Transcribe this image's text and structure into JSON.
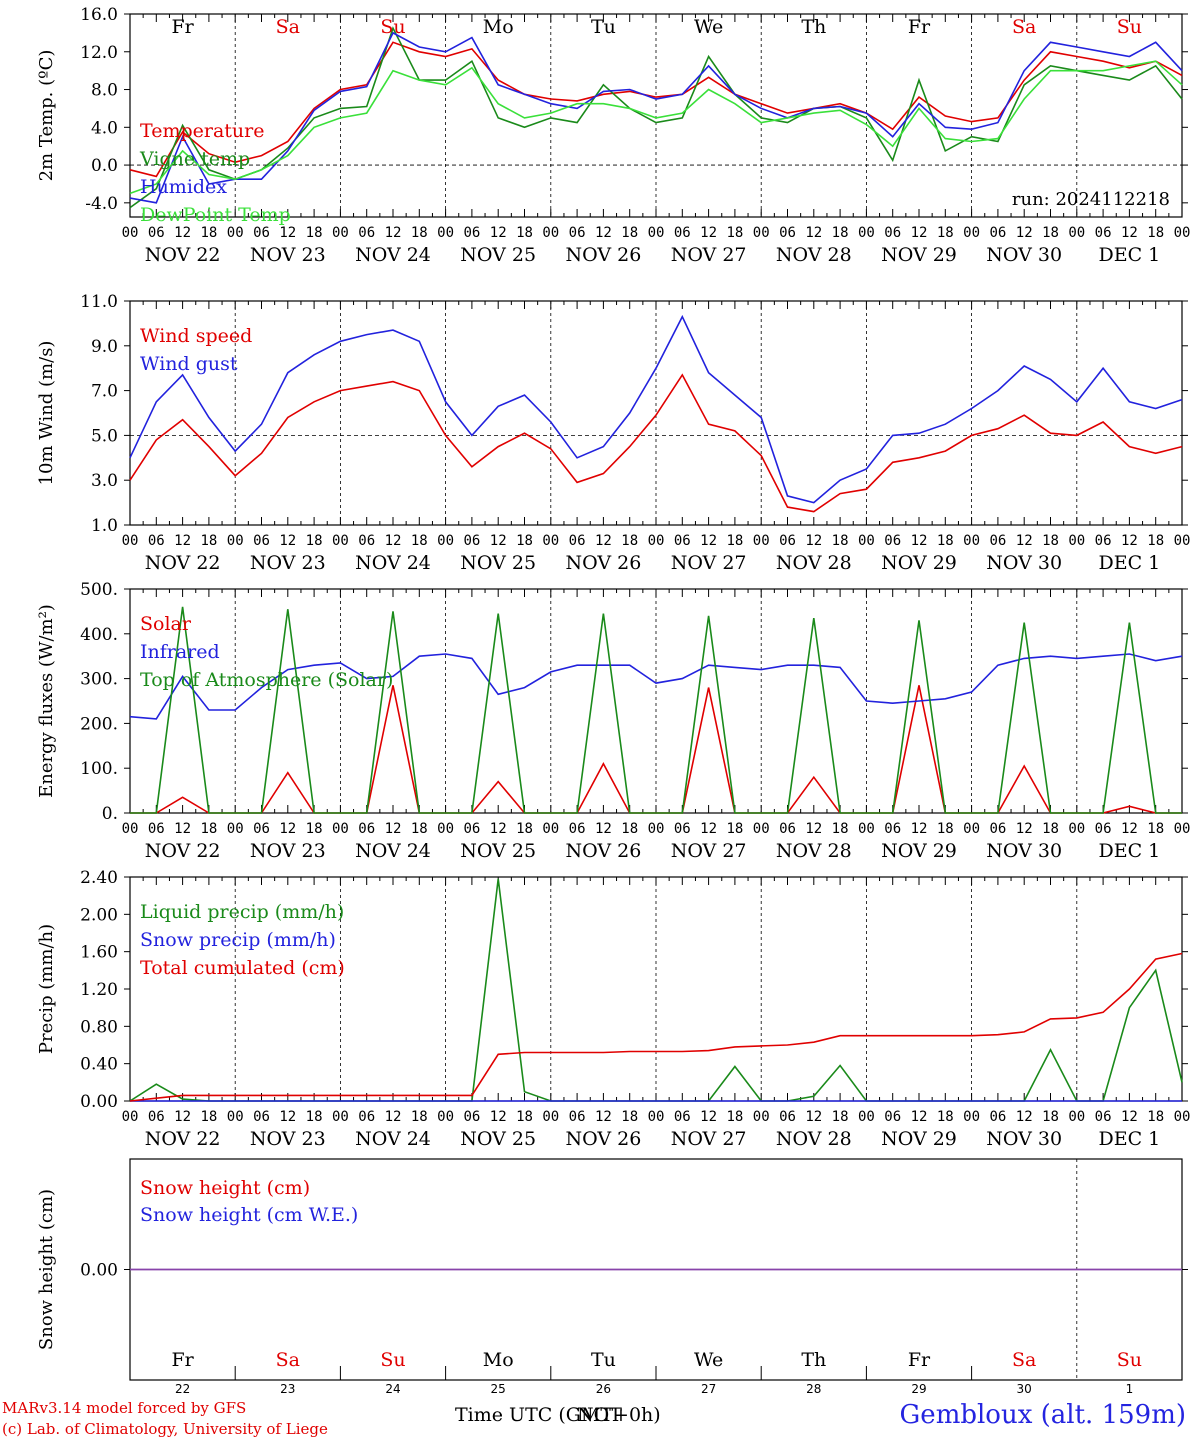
{
  "colors": {
    "red": "#e00000",
    "green": "#1a8a1a",
    "blue": "#2222dd",
    "lightgreen": "#3ae03a",
    "purple": "#8844aa",
    "black": "#000000"
  },
  "days": [
    {
      "abbr": "Fr",
      "weekend": false,
      "date_label": "NOV 22",
      "day_num": "22"
    },
    {
      "abbr": "Sa",
      "weekend": true,
      "date_label": "NOV 23",
      "day_num": "23"
    },
    {
      "abbr": "Su",
      "weekend": true,
      "date_label": "NOV 24",
      "day_num": "24"
    },
    {
      "abbr": "Mo",
      "weekend": false,
      "date_label": "NOV 25",
      "day_num": "25"
    },
    {
      "abbr": "Tu",
      "weekend": false,
      "date_label": "NOV 26",
      "day_num": "26"
    },
    {
      "abbr": "We",
      "weekend": false,
      "date_label": "NOV 27",
      "day_num": "27"
    },
    {
      "abbr": "Th",
      "weekend": false,
      "date_label": "NOV 28",
      "day_num": "28"
    },
    {
      "abbr": "Fr",
      "weekend": false,
      "date_label": "NOV 29",
      "day_num": "29"
    },
    {
      "abbr": "Sa",
      "weekend": true,
      "date_label": "NOV 30",
      "day_num": "30"
    },
    {
      "abbr": "Su",
      "weekend": true,
      "date_label": "DEC  1",
      "day_num": "1"
    }
  ],
  "hour_ticks": [
    "00",
    "06",
    "12",
    "18"
  ],
  "final_hour_tick": "00",
  "footer": {
    "credit_line1": "MARv3.14 model forced by GFS",
    "credit_line2": "(c) Lab. of Climatology, University of Liege",
    "time_axis_label": "Time UTC (GMT+0h)",
    "time_axis_overlap": "NOT",
    "station": "Gembloux (alt. 159m)"
  },
  "chart_data": [
    {
      "type": "line",
      "ylabel": "2m Temp. (ºC)",
      "ylim": [
        -5.5,
        16.0
      ],
      "yticks": [
        -4.0,
        0.0,
        4.0,
        8.0,
        12.0,
        16.0
      ],
      "ytick_labels": [
        "-4.0",
        "0.0",
        "4.0",
        "8.0",
        "12.0",
        "16.0"
      ],
      "ref_line": 0.0,
      "annotation": "run: 2024112218",
      "x_hours": [
        0,
        6,
        12,
        18,
        24,
        30,
        36,
        42,
        48,
        54,
        60,
        66,
        72,
        78,
        84,
        90,
        96,
        102,
        108,
        114,
        120,
        126,
        132,
        138,
        144,
        150,
        156,
        162,
        168,
        174,
        180,
        186,
        192,
        198,
        204,
        210,
        216,
        222,
        228,
        234,
        240
      ],
      "series": [
        {
          "name": "Temperature",
          "color": "red",
          "values": [
            -0.5,
            -1.2,
            3.5,
            1.2,
            0.3,
            1.0,
            2.5,
            6.0,
            8.0,
            8.5,
            13.0,
            12.0,
            11.5,
            12.3,
            9.0,
            7.5,
            7.0,
            6.8,
            7.5,
            7.8,
            7.2,
            7.5,
            9.3,
            7.5,
            6.5,
            5.5,
            6.0,
            6.5,
            5.5,
            3.8,
            7.2,
            5.2,
            4.6,
            5.0,
            9.0,
            12.0,
            11.5,
            11.0,
            10.3,
            11.0,
            9.5
          ]
        },
        {
          "name": "Vigne temp",
          "color": "green",
          "values": [
            -4.5,
            -2.5,
            4.2,
            -0.5,
            -1.5,
            -0.5,
            1.8,
            5.0,
            6.0,
            6.2,
            14.5,
            9.0,
            9.0,
            11.0,
            5.0,
            4.0,
            5.0,
            4.5,
            8.5,
            6.0,
            4.5,
            5.0,
            11.5,
            7.5,
            5.0,
            4.5,
            6.0,
            6.2,
            5.0,
            0.5,
            9.0,
            1.5,
            3.0,
            2.5,
            8.5,
            10.5,
            10.0,
            9.5,
            9.0,
            10.5,
            7.0
          ]
        },
        {
          "name": "Humidex",
          "color": "blue",
          "values": [
            -3.5,
            -4.0,
            3.0,
            -2.0,
            -1.5,
            -1.5,
            1.5,
            5.8,
            7.8,
            8.3,
            14.0,
            12.5,
            12.0,
            13.5,
            8.5,
            7.5,
            6.5,
            6.0,
            7.8,
            8.0,
            7.0,
            7.5,
            10.5,
            7.5,
            6.0,
            5.0,
            6.0,
            6.2,
            5.5,
            3.0,
            6.5,
            4.0,
            3.8,
            4.5,
            10.0,
            13.0,
            12.5,
            12.0,
            11.5,
            13.0,
            10.0
          ]
        },
        {
          "name": "DewPoint Temp",
          "color": "lightgreen",
          "values": [
            -3.0,
            -2.0,
            1.5,
            -1.0,
            -1.5,
            -0.5,
            1.0,
            4.0,
            5.0,
            5.5,
            10.0,
            9.0,
            8.5,
            10.3,
            6.5,
            5.0,
            5.5,
            6.5,
            6.5,
            6.0,
            5.0,
            5.5,
            8.0,
            6.5,
            4.5,
            5.0,
            5.5,
            5.8,
            4.3,
            2.0,
            6.0,
            2.8,
            2.5,
            2.8,
            7.0,
            10.0,
            10.0,
            10.0,
            10.5,
            11.0,
            8.5
          ]
        }
      ]
    },
    {
      "type": "line",
      "ylabel": "10m Wind (m/s)",
      "ylim": [
        1.0,
        11.0
      ],
      "yticks": [
        1.0,
        3.0,
        5.0,
        7.0,
        9.0,
        11.0
      ],
      "ytick_labels": [
        "1.0",
        "3.0",
        "5.0",
        "7.0",
        "9.0",
        "11.0"
      ],
      "ref_line": 5.0,
      "x_hours": [
        0,
        6,
        12,
        18,
        24,
        30,
        36,
        42,
        48,
        54,
        60,
        66,
        72,
        78,
        84,
        90,
        96,
        102,
        108,
        114,
        120,
        126,
        132,
        138,
        144,
        150,
        156,
        162,
        168,
        174,
        180,
        186,
        192,
        198,
        204,
        210,
        216,
        222,
        228,
        234,
        240
      ],
      "series": [
        {
          "name": "Wind speed",
          "color": "red",
          "values": [
            3.0,
            4.8,
            5.7,
            4.5,
            3.2,
            4.2,
            5.8,
            6.5,
            7.0,
            7.2,
            7.4,
            7.0,
            5.0,
            3.6,
            4.5,
            5.1,
            4.4,
            2.9,
            3.3,
            4.5,
            5.9,
            7.7,
            5.5,
            5.2,
            4.1,
            1.8,
            1.6,
            2.4,
            2.6,
            3.8,
            4.0,
            4.3,
            5.0,
            5.3,
            5.9,
            5.1,
            5.0,
            5.6,
            4.5,
            4.2,
            4.5
          ]
        },
        {
          "name": "Wind gust",
          "color": "blue",
          "values": [
            4.0,
            6.5,
            7.7,
            5.8,
            4.3,
            5.5,
            7.8,
            8.6,
            9.2,
            9.5,
            9.7,
            9.2,
            6.5,
            5.0,
            6.3,
            6.8,
            5.6,
            4.0,
            4.5,
            6.0,
            8.0,
            10.3,
            7.8,
            6.8,
            5.8,
            2.3,
            2.0,
            3.0,
            3.5,
            5.0,
            5.1,
            5.5,
            6.2,
            7.0,
            8.1,
            7.5,
            6.5,
            8.0,
            6.5,
            6.2,
            6.6
          ]
        }
      ]
    },
    {
      "type": "line",
      "ylabel": "Energy fluxes (W/m²)",
      "ylim": [
        0,
        500
      ],
      "yticks": [
        0,
        100,
        200,
        300,
        400,
        500
      ],
      "ytick_labels": [
        "0.",
        "100.",
        "200.",
        "300.",
        "400.",
        "500."
      ],
      "x_hours": [
        0,
        6,
        12,
        18,
        24,
        30,
        36,
        42,
        48,
        54,
        60,
        66,
        72,
        78,
        84,
        90,
        96,
        102,
        108,
        114,
        120,
        126,
        132,
        138,
        144,
        150,
        156,
        162,
        168,
        174,
        180,
        186,
        192,
        198,
        204,
        210,
        216,
        222,
        228,
        234,
        240
      ],
      "series": [
        {
          "name": "Solar",
          "color": "red",
          "values": [
            0,
            0,
            35,
            0,
            0,
            0,
            90,
            0,
            0,
            0,
            285,
            0,
            0,
            0,
            70,
            0,
            0,
            0,
            110,
            0,
            0,
            0,
            280,
            0,
            0,
            0,
            80,
            0,
            0,
            0,
            285,
            0,
            0,
            0,
            105,
            0,
            0,
            0,
            15,
            0,
            0
          ]
        },
        {
          "name": "Infrared",
          "color": "blue",
          "values": [
            215,
            210,
            305,
            230,
            230,
            280,
            320,
            330,
            335,
            300,
            305,
            350,
            355,
            345,
            265,
            280,
            315,
            330,
            330,
            330,
            290,
            300,
            330,
            325,
            320,
            330,
            330,
            325,
            250,
            245,
            250,
            255,
            270,
            330,
            345,
            350,
            345,
            350,
            355,
            340,
            350
          ]
        },
        {
          "name": "Top of Atmosphere (Solar)",
          "color": "green",
          "values": [
            0,
            0,
            460,
            0,
            0,
            0,
            455,
            0,
            0,
            0,
            450,
            0,
            0,
            0,
            445,
            0,
            0,
            0,
            445,
            0,
            0,
            0,
            440,
            0,
            0,
            0,
            435,
            0,
            0,
            0,
            430,
            0,
            0,
            0,
            425,
            0,
            0,
            0,
            425,
            0,
            0
          ]
        }
      ]
    },
    {
      "type": "line",
      "ylabel": "Precip (mm/h)",
      "ylim": [
        0,
        2.4
      ],
      "yticks": [
        0,
        0.4,
        0.8,
        1.2,
        1.6,
        2.0,
        2.4
      ],
      "ytick_labels": [
        "0.00",
        "0.40",
        "0.80",
        "1.20",
        "1.60",
        "2.00",
        "2.40"
      ],
      "x_hours": [
        0,
        6,
        12,
        18,
        24,
        30,
        36,
        42,
        48,
        54,
        60,
        66,
        72,
        78,
        84,
        90,
        96,
        102,
        108,
        114,
        120,
        126,
        132,
        138,
        144,
        150,
        156,
        162,
        168,
        174,
        180,
        186,
        192,
        198,
        204,
        210,
        216,
        222,
        228,
        234,
        240
      ],
      "series": [
        {
          "name": "Liquid precip (mm/h)",
          "color": "green",
          "values": [
            0,
            0.18,
            0.02,
            0,
            0,
            0,
            0,
            0,
            0,
            0,
            0,
            0,
            0,
            0,
            2.38,
            0.1,
            0,
            0,
            0,
            0,
            0,
            0,
            0,
            0.37,
            0,
            0,
            0.05,
            0.38,
            0,
            0,
            0,
            0,
            0,
            0,
            0,
            0.55,
            0,
            0,
            1.0,
            1.4,
            0.2
          ]
        },
        {
          "name": "Snow precip (mm/h)",
          "color": "blue",
          "values": [
            0,
            0,
            0,
            0,
            0,
            0,
            0,
            0,
            0,
            0,
            0,
            0,
            0,
            0,
            0,
            0,
            0,
            0,
            0,
            0,
            0,
            0,
            0,
            0,
            0,
            0,
            0,
            0,
            0,
            0,
            0,
            0,
            0,
            0,
            0,
            0,
            0,
            0,
            0,
            0,
            0
          ]
        },
        {
          "name": "Total cumulated (cm)",
          "color": "red",
          "values": [
            0,
            0.03,
            0.06,
            0.06,
            0.06,
            0.06,
            0.06,
            0.06,
            0.06,
            0.06,
            0.06,
            0.06,
            0.06,
            0.06,
            0.5,
            0.52,
            0.52,
            0.52,
            0.52,
            0.53,
            0.53,
            0.53,
            0.54,
            0.58,
            0.59,
            0.6,
            0.63,
            0.7,
            0.7,
            0.7,
            0.7,
            0.7,
            0.7,
            0.71,
            0.74,
            0.88,
            0.89,
            0.95,
            1.2,
            1.52,
            1.58
          ]
        }
      ]
    },
    {
      "type": "line",
      "ylabel": "Snow height (cm)",
      "ylim": [
        -1,
        1
      ],
      "yticks": [
        0
      ],
      "ytick_labels": [
        "0.00"
      ],
      "x_hours": [
        0,
        240
      ],
      "series": [
        {
          "name": "Snow height (cm)",
          "color": "red",
          "values": [
            0,
            0
          ]
        },
        {
          "name": "Snow height (cm W.E.)",
          "color": "blue",
          "values": [
            0,
            0
          ]
        }
      ]
    }
  ]
}
